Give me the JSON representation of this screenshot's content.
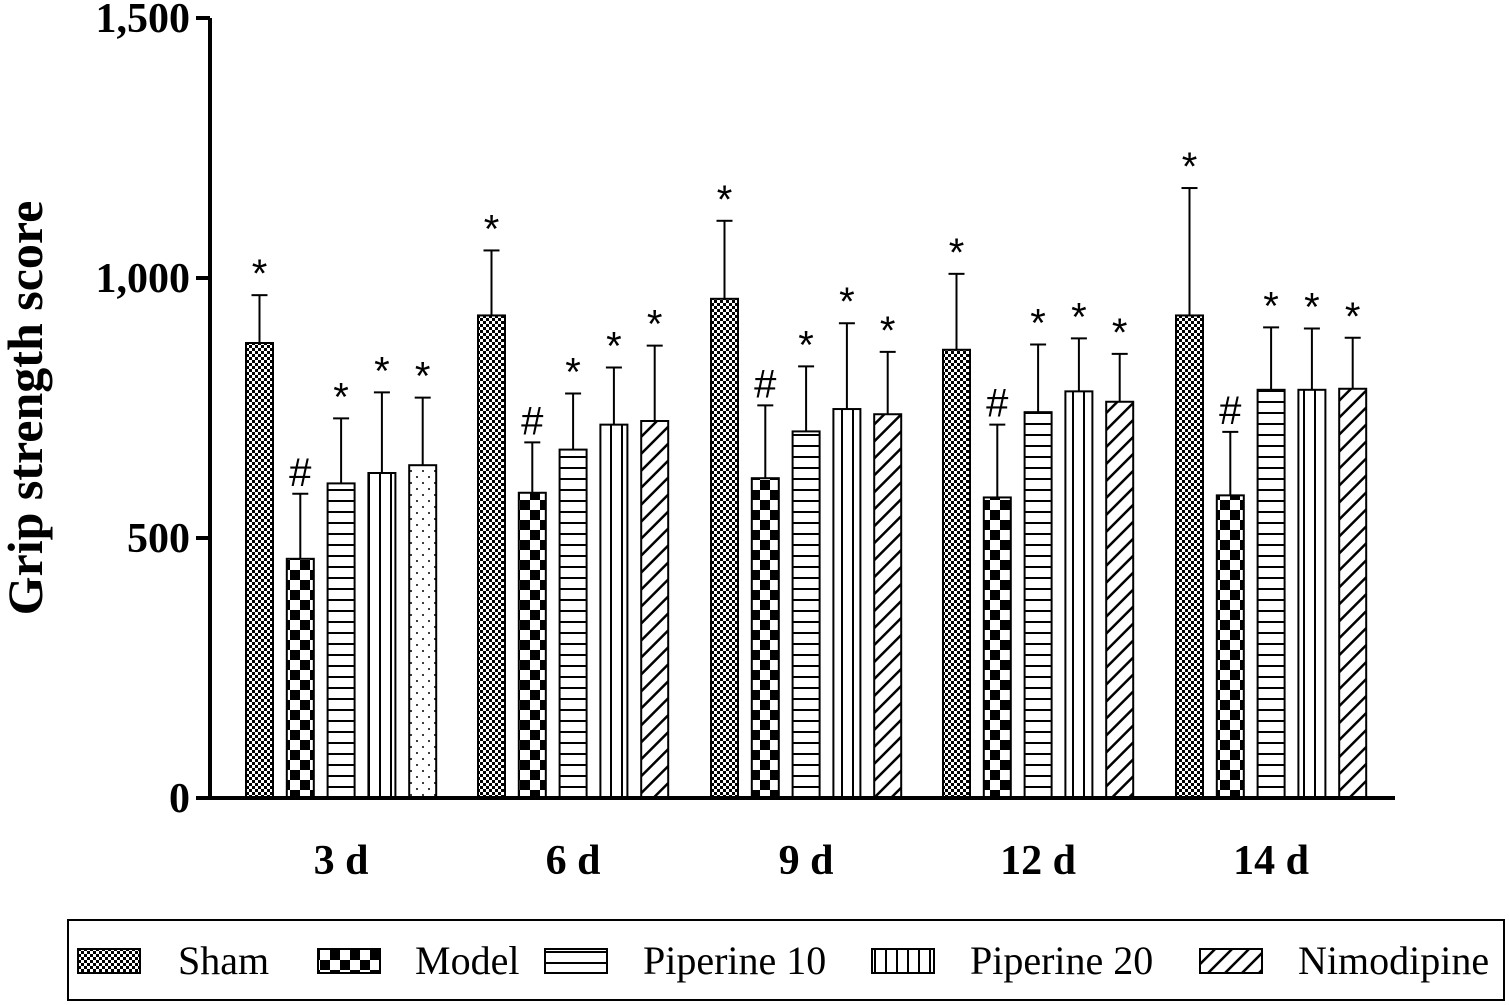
{
  "chart_data": {
    "type": "bar",
    "title": "",
    "xlabel": "",
    "ylabel": "Grip strength score",
    "ylim": [
      0,
      1500
    ],
    "yticks": [
      0,
      500,
      1000,
      1500
    ],
    "ytick_labels": [
      "0",
      "500",
      "1,000",
      "1,500"
    ],
    "categories": [
      "3 d",
      "6 d",
      "9 d",
      "12 d",
      "14 d"
    ],
    "grid": false,
    "legend_position": "bottom",
    "error_bars": "upper",
    "series": [
      {
        "name": "Sham",
        "pattern": "fine-checker",
        "values": [
          875,
          928,
          960,
          862,
          928
        ],
        "errors": [
          92,
          125,
          150,
          146,
          245
        ],
        "marks": [
          "*",
          "*",
          "*",
          "*",
          "*"
        ]
      },
      {
        "name": "Model",
        "pattern": "checkerboard",
        "values": [
          460,
          587,
          615,
          578,
          582
        ],
        "errors": [
          125,
          97,
          140,
          140,
          122
        ],
        "marks": [
          "#",
          "#",
          "#",
          "#",
          "#"
        ]
      },
      {
        "name": "Piperine 10",
        "pattern": "horizontal-lines",
        "values": [
          605,
          670,
          705,
          742,
          785
        ],
        "errors": [
          125,
          108,
          125,
          130,
          120
        ],
        "marks": [
          "*",
          "*",
          "*",
          "*",
          "*"
        ]
      },
      {
        "name": "Piperine 20",
        "pattern": "vertical-lines",
        "values": [
          625,
          718,
          748,
          782,
          785
        ],
        "errors": [
          155,
          110,
          165,
          102,
          118
        ],
        "marks": [
          "*",
          "*",
          "*",
          "*",
          "*"
        ]
      },
      {
        "name": "Nimodipine",
        "pattern": "diagonal-lines",
        "values": [
          640,
          725,
          738,
          762,
          787
        ],
        "errors": [
          130,
          145,
          120,
          92,
          98
        ],
        "marks": [
          "*",
          "*",
          "*",
          "*",
          "*"
        ]
      }
    ],
    "first_group_last_bar_pattern": "dots"
  }
}
